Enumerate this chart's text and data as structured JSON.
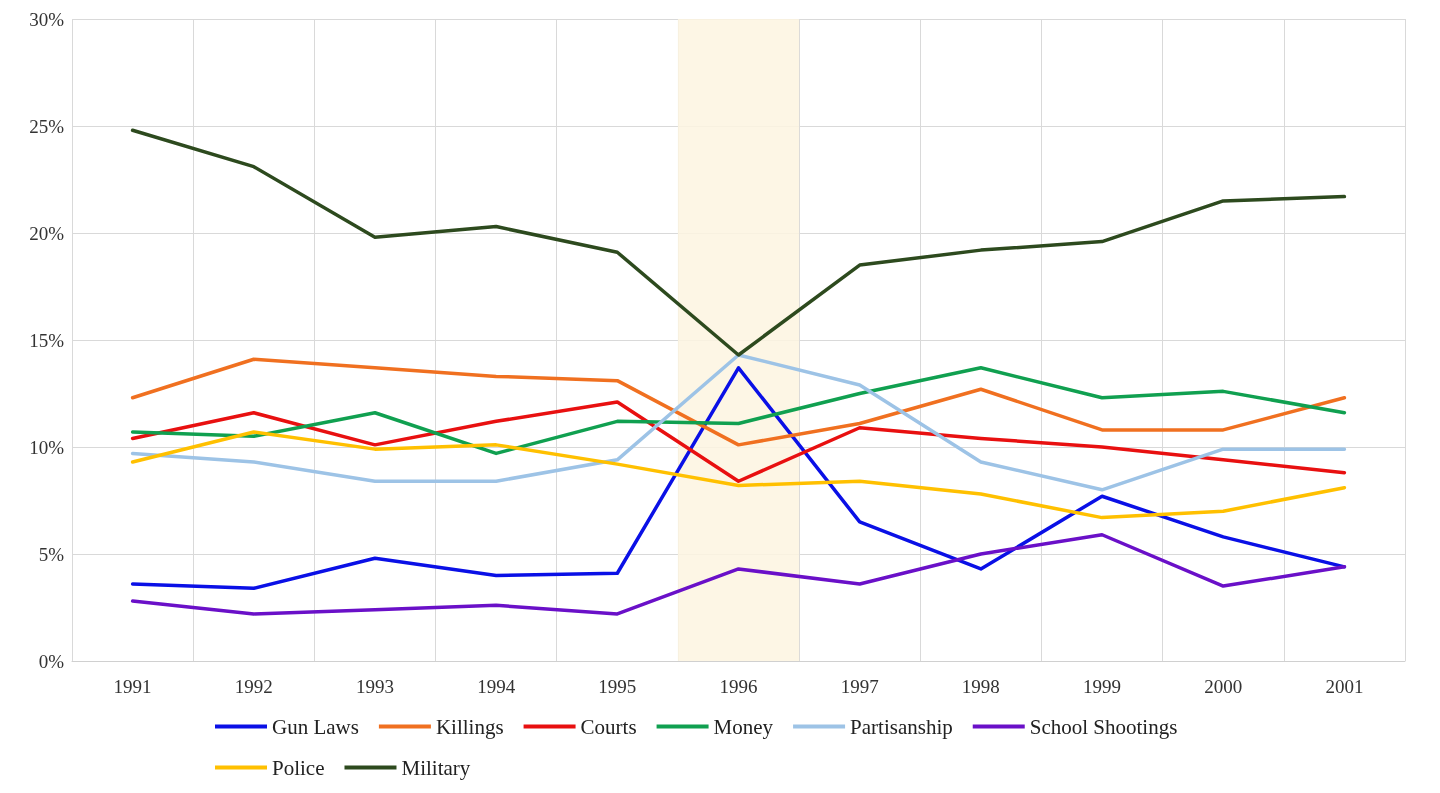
{
  "chart_data": {
    "type": "line",
    "categories": [
      "1991",
      "1992",
      "1993",
      "1994",
      "1995",
      "1996",
      "1997",
      "1998",
      "1999",
      "2000",
      "2001"
    ],
    "series": [
      {
        "name": "Gun Laws",
        "color": "#0a10e6",
        "values": [
          3.6,
          3.4,
          4.8,
          4.0,
          4.1,
          13.7,
          6.5,
          4.3,
          7.7,
          5.8,
          4.4
        ]
      },
      {
        "name": "Killings",
        "color": "#f07020",
        "values": [
          12.3,
          14.1,
          13.7,
          13.3,
          13.1,
          10.1,
          11.1,
          12.7,
          10.8,
          10.8,
          12.3
        ]
      },
      {
        "name": "Courts",
        "color": "#e81010",
        "values": [
          10.4,
          11.6,
          10.1,
          11.2,
          12.1,
          8.4,
          10.9,
          10.4,
          10.0,
          9.4,
          8.8
        ]
      },
      {
        "name": "Money",
        "color": "#10a050",
        "values": [
          10.7,
          10.5,
          11.6,
          9.7,
          11.2,
          11.1,
          12.5,
          13.7,
          12.3,
          12.6,
          11.6
        ]
      },
      {
        "name": "Partisanship",
        "color": "#9dc3e6",
        "values": [
          9.7,
          9.3,
          8.4,
          8.4,
          9.4,
          14.3,
          12.9,
          9.3,
          8.0,
          9.9,
          9.9
        ]
      },
      {
        "name": "School Shootings",
        "color": "#6a10c8",
        "values": [
          2.8,
          2.2,
          2.4,
          2.6,
          2.2,
          4.3,
          3.6,
          5.0,
          5.9,
          3.5,
          4.4
        ]
      },
      {
        "name": "Police",
        "color": "#ffc000",
        "values": [
          9.3,
          10.7,
          9.9,
          10.1,
          9.2,
          8.2,
          8.4,
          7.8,
          6.7,
          7.0,
          8.1
        ]
      },
      {
        "name": "Military",
        "color": "#2d4a1e",
        "values": [
          24.8,
          23.1,
          19.8,
          20.3,
          19.1,
          14.3,
          18.5,
          19.2,
          19.6,
          21.5,
          21.7
        ]
      }
    ],
    "ylim": [
      0,
      30
    ],
    "yticks": [
      {
        "value": 0,
        "label": "0%"
      },
      {
        "value": 5,
        "label": "5%"
      },
      {
        "value": 10,
        "label": "10%"
      },
      {
        "value": 15,
        "label": "15%"
      },
      {
        "value": 20,
        "label": "20%"
      },
      {
        "value": 25,
        "label": "25%"
      },
      {
        "value": 30,
        "label": "30%"
      }
    ],
    "bands": [
      {
        "axis": "x",
        "from": "1996",
        "to": "1996",
        "color": "#fdf5e0"
      }
    ],
    "grid": true,
    "legend": "bottom",
    "marker": "none",
    "line_style": "solid"
  }
}
